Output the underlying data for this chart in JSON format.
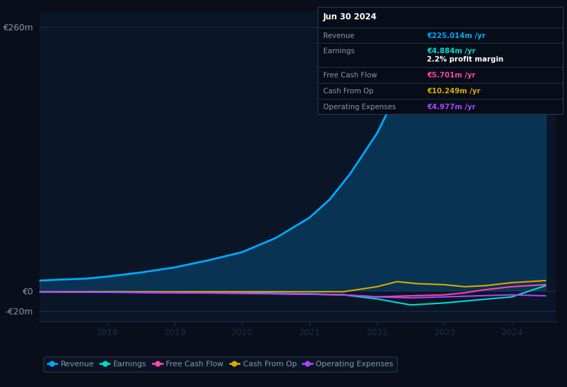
{
  "bg_color": "#0a0e1a",
  "plot_bg_color": "#0a1628",
  "grid_color": "#1a2e4a",
  "text_color": "#8899aa",
  "white": "#ffffff",
  "ylabel_260": "€260m",
  "ylabel_0": "€0",
  "ylabel_neg20": "-€20m",
  "x_ticks": [
    2018,
    2019,
    2020,
    2021,
    2022,
    2023,
    2024
  ],
  "Revenue_x": [
    2017.0,
    2017.3,
    2017.7,
    2018.0,
    2018.5,
    2019.0,
    2019.5,
    2020.0,
    2020.5,
    2021.0,
    2021.3,
    2021.6,
    2022.0,
    2022.3,
    2022.6,
    2023.0,
    2023.3,
    2023.5,
    2023.7,
    2024.0,
    2024.3,
    2024.5
  ],
  "Revenue_y": [
    10,
    11,
    12,
    14,
    18,
    23,
    30,
    38,
    52,
    72,
    90,
    115,
    155,
    195,
    230,
    258,
    250,
    235,
    215,
    195,
    210,
    225
  ],
  "Earnings_x": [
    2017.0,
    2018.0,
    2019.0,
    2020.0,
    2021.0,
    2021.5,
    2022.0,
    2022.5,
    2023.0,
    2023.5,
    2024.0,
    2024.5
  ],
  "Earnings_y": [
    -1,
    -1,
    -1.5,
    -2,
    -3,
    -4,
    -8,
    -14,
    -12,
    -9,
    -6,
    5
  ],
  "FCF_x": [
    2017.0,
    2018.0,
    2019.0,
    2020.0,
    2021.0,
    2021.5,
    2022.0,
    2022.5,
    2023.0,
    2023.3,
    2023.6,
    2024.0,
    2024.5
  ],
  "FCF_y": [
    -1,
    -1.5,
    -2,
    -2.5,
    -3.5,
    -4,
    -6,
    -5,
    -4,
    -2,
    1,
    4,
    6
  ],
  "CashOp_x": [
    2017.0,
    2018.0,
    2019.0,
    2020.0,
    2021.0,
    2021.5,
    2022.0,
    2022.3,
    2022.6,
    2023.0,
    2023.3,
    2023.6,
    2024.0,
    2024.5
  ],
  "CashOp_y": [
    -1,
    -1,
    -1,
    -1,
    -1,
    -1,
    4,
    9,
    7,
    6,
    4,
    5,
    8,
    10
  ],
  "OpEx_x": [
    2017.0,
    2018.0,
    2019.0,
    2020.0,
    2021.0,
    2021.5,
    2022.0,
    2022.5,
    2023.0,
    2023.5,
    2024.0,
    2024.5
  ],
  "OpEx_y": [
    -1,
    -1.5,
    -2,
    -2.5,
    -3.5,
    -4,
    -6,
    -7,
    -6,
    -5,
    -4,
    -5
  ],
  "Revenue_color": "#00aaff",
  "Earnings_color": "#00ddcc",
  "FCF_color": "#ff44aa",
  "CashOp_color": "#ddaa00",
  "OpEx_color": "#aa44ff",
  "ylim": [
    -30,
    275
  ],
  "xlim": [
    2017.0,
    2024.65
  ],
  "tooltip_bg": "#070d18",
  "tooltip_border": "#2a3a4a",
  "tooltip_header": "Jun 30 2024",
  "tt_rows": [
    {
      "label": "Revenue",
      "value": "€225.014m /yr",
      "vc": "#00aaff",
      "sub": null
    },
    {
      "label": "Earnings",
      "value": "€4.884m /yr",
      "vc": "#00ddcc",
      "sub": "2.2% profit margin"
    },
    {
      "label": "Free Cash Flow",
      "value": "€5.701m /yr",
      "vc": "#ff44aa",
      "sub": null
    },
    {
      "label": "Cash From Op",
      "value": "€10.249m /yr",
      "vc": "#ddaa00",
      "sub": null
    },
    {
      "label": "Operating Expenses",
      "value": "€4.977m /yr",
      "vc": "#aa44ff",
      "sub": null
    }
  ],
  "legend": [
    {
      "label": "Revenue",
      "color": "#00aaff"
    },
    {
      "label": "Earnings",
      "color": "#00ddcc"
    },
    {
      "label": "Free Cash Flow",
      "color": "#ff44aa"
    },
    {
      "label": "Cash From Op",
      "color": "#ddaa00"
    },
    {
      "label": "Operating Expenses",
      "color": "#aa44ff"
    }
  ]
}
